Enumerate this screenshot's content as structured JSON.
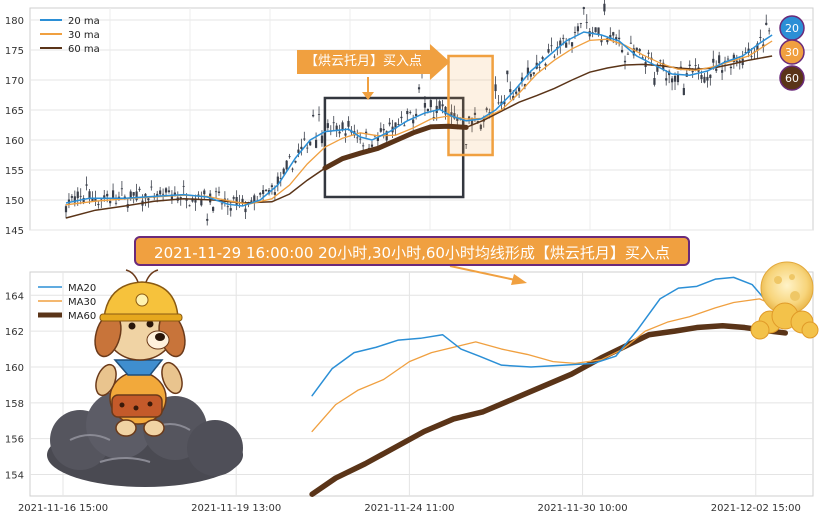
{
  "colors": {
    "ma20": "#2b8fd6",
    "ma30": "#f0a040",
    "ma60": "#5a3418",
    "candle": "#3a3f4a",
    "callout_box": "#33373f",
    "highlight_box": "#f0a040",
    "banner_fill": "#f0a040",
    "banner_border": "#6a2a7a"
  },
  "annotation": {
    "arrow_label": "【烘云托月】买入点",
    "banner": "2021-11-29 16:00:00 20小时,30小时,60小时均线形成【烘云托月】买入点"
  },
  "badges": [
    "20",
    "30",
    "60"
  ],
  "illustrations": [
    "cartoon-dog-on-cloud",
    "moon-with-clouds"
  ],
  "chart_data": [
    {
      "type": "line",
      "description_series": "hourly candlesticks with moving averages",
      "ylim": [
        145,
        182
      ],
      "yticks": [
        145,
        150,
        155,
        160,
        165,
        170,
        175,
        180
      ],
      "grid": true,
      "legend_placement": "top-left",
      "series": [
        {
          "name": "20 ma",
          "color_key": "ma20"
        },
        {
          "name": "30 ma",
          "color_key": "ma30"
        },
        {
          "name": "60 ma",
          "color_key": "ma60"
        }
      ],
      "ma_points": {
        "ma20": [
          [
            0,
            149.5
          ],
          [
            8,
            150.3
          ],
          [
            20,
            150.3
          ],
          [
            30,
            150.6
          ],
          [
            40,
            150.9
          ],
          [
            48,
            150.5
          ],
          [
            55,
            149.3
          ],
          [
            60,
            149.0
          ],
          [
            66,
            150.0
          ],
          [
            72,
            152.5
          ],
          [
            78,
            157.0
          ],
          [
            83,
            160.0
          ],
          [
            88,
            161.4
          ],
          [
            96,
            161.8
          ],
          [
            100,
            160.5
          ],
          [
            104,
            160.0
          ],
          [
            110,
            161.4
          ],
          [
            116,
            163.2
          ],
          [
            122,
            164.5
          ],
          [
            127,
            165.1
          ],
          [
            131,
            164.0
          ],
          [
            136,
            163.2
          ],
          [
            141,
            163.5
          ],
          [
            146,
            165.0
          ],
          [
            152,
            168.0
          ],
          [
            158,
            171.5
          ],
          [
            164,
            174.0
          ],
          [
            170,
            176.5
          ],
          [
            176,
            178.0
          ],
          [
            182,
            177.5
          ],
          [
            188,
            176.5
          ],
          [
            194,
            174.0
          ],
          [
            200,
            172.5
          ],
          [
            206,
            171.0
          ],
          [
            212,
            170.8
          ],
          [
            218,
            171.5
          ],
          [
            224,
            173.0
          ],
          [
            230,
            174.0
          ],
          [
            236,
            176.2
          ],
          [
            240,
            177.5
          ]
        ],
        "ma30": [
          [
            0,
            149.2
          ],
          [
            10,
            149.8
          ],
          [
            20,
            150.2
          ],
          [
            30,
            150.5
          ],
          [
            40,
            150.8
          ],
          [
            48,
            150.6
          ],
          [
            56,
            149.8
          ],
          [
            62,
            149.3
          ],
          [
            70,
            150.2
          ],
          [
            76,
            152.5
          ],
          [
            82,
            156.0
          ],
          [
            88,
            158.8
          ],
          [
            94,
            160.3
          ],
          [
            100,
            161.2
          ],
          [
            106,
            160.7
          ],
          [
            112,
            160.8
          ],
          [
            118,
            162.0
          ],
          [
            124,
            163.5
          ],
          [
            130,
            164.0
          ],
          [
            136,
            163.5
          ],
          [
            142,
            163.6
          ],
          [
            148,
            165.0
          ],
          [
            154,
            167.8
          ],
          [
            160,
            171.0
          ],
          [
            166,
            173.3
          ],
          [
            172,
            175.2
          ],
          [
            178,
            176.6
          ],
          [
            184,
            176.8
          ],
          [
            190,
            175.8
          ],
          [
            196,
            174.2
          ],
          [
            202,
            172.8
          ],
          [
            208,
            171.8
          ],
          [
            214,
            171.6
          ],
          [
            220,
            172.2
          ],
          [
            226,
            173.1
          ],
          [
            232,
            174.0
          ],
          [
            240,
            176.5
          ]
        ],
        "ma60": [
          [
            0,
            147.0
          ],
          [
            10,
            148.3
          ],
          [
            20,
            149.0
          ],
          [
            30,
            149.8
          ],
          [
            40,
            150.2
          ],
          [
            50,
            150.0
          ],
          [
            60,
            149.5
          ],
          [
            70,
            149.7
          ],
          [
            76,
            151.0
          ],
          [
            82,
            153.3
          ],
          [
            88,
            155.3
          ],
          [
            94,
            156.9
          ],
          [
            100,
            157.8
          ],
          [
            106,
            158.6
          ],
          [
            112,
            159.9
          ],
          [
            118,
            161.2
          ],
          [
            124,
            162.2
          ],
          [
            130,
            162.3
          ],
          [
            136,
            162.1
          ],
          [
            142,
            163.3
          ],
          [
            148,
            164.8
          ],
          [
            154,
            166.3
          ],
          [
            160,
            167.4
          ],
          [
            166,
            168.6
          ],
          [
            172,
            170.0
          ],
          [
            178,
            171.3
          ],
          [
            184,
            172.0
          ],
          [
            190,
            172.5
          ],
          [
            196,
            172.6
          ],
          [
            202,
            172.4
          ],
          [
            208,
            172.0
          ],
          [
            214,
            171.8
          ],
          [
            220,
            172.0
          ],
          [
            226,
            172.6
          ],
          [
            232,
            173.3
          ],
          [
            240,
            174.0
          ]
        ]
      },
      "callout_box": {
        "x_range": [
          88,
          135
        ],
        "y_range": [
          150.5,
          167.0
        ]
      },
      "highlight_box": {
        "x_range": [
          130,
          145
        ],
        "y_range": [
          157.5,
          174.0
        ]
      }
    },
    {
      "type": "line",
      "xlabel": "",
      "ylabel": "",
      "grid": true,
      "legend_placement": "top-left",
      "ylim": [
        152.8,
        165.3
      ],
      "yticks": [
        154,
        156,
        158,
        160,
        162,
        164
      ],
      "xlim": [
        0,
        100
      ],
      "xtick_labels": [
        "2021-11-16 15:00",
        "2021-11-19 13:00",
        "2021-11-24 11:00",
        "2021-11-30 10:00",
        "2021-12-02 15:00"
      ],
      "xtick_positions": [
        0,
        23.5,
        47,
        70.5,
        94
      ],
      "series": [
        {
          "name": "MA20",
          "color_key": "ma20",
          "points": [
            [
              33.8,
              158.4
            ],
            [
              36.5,
              159.9
            ],
            [
              39.5,
              160.8
            ],
            [
              42.5,
              161.1
            ],
            [
              45.5,
              161.5
            ],
            [
              48.5,
              161.6
            ],
            [
              51.5,
              161.8
            ],
            [
              54,
              161.0
            ],
            [
              56.5,
              160.6
            ],
            [
              59.5,
              160.1
            ],
            [
              63.5,
              160.0
            ],
            [
              68,
              160.1
            ],
            [
              72,
              160.2
            ],
            [
              75,
              160.6
            ],
            [
              78,
              162.1
            ],
            [
              81,
              163.8
            ],
            [
              83.5,
              164.4
            ],
            [
              86,
              164.5
            ],
            [
              88.5,
              164.9
            ],
            [
              91,
              165.0
            ],
            [
              93.5,
              164.6
            ],
            [
              96,
              163.4
            ],
            [
              98,
              163.0
            ]
          ]
        },
        {
          "name": "MA30",
          "color_key": "ma30",
          "points": [
            [
              33.8,
              156.4
            ],
            [
              37,
              157.9
            ],
            [
              40,
              158.7
            ],
            [
              43.5,
              159.3
            ],
            [
              47,
              160.3
            ],
            [
              50,
              160.8
            ],
            [
              53,
              161.1
            ],
            [
              56,
              161.4
            ],
            [
              59.5,
              161.0
            ],
            [
              63,
              160.7
            ],
            [
              66.5,
              160.3
            ],
            [
              69.5,
              160.2
            ],
            [
              73,
              160.4
            ],
            [
              76,
              161.0
            ],
            [
              79,
              162.0
            ],
            [
              82,
              162.5
            ],
            [
              85,
              162.8
            ],
            [
              88.5,
              163.3
            ],
            [
              91,
              163.6
            ],
            [
              94.5,
              163.8
            ],
            [
              98,
              163.2
            ]
          ]
        },
        {
          "name": "MA60",
          "color_key": "ma60",
          "points": [
            [
              33.8,
              152.9
            ],
            [
              37,
              153.8
            ],
            [
              41,
              154.6
            ],
            [
              45,
              155.5
            ],
            [
              49,
              156.4
            ],
            [
              53,
              157.1
            ],
            [
              57,
              157.5
            ],
            [
              61,
              158.2
            ],
            [
              65,
              158.9
            ],
            [
              69,
              159.6
            ],
            [
              73,
              160.5
            ],
            [
              77,
              161.3
            ],
            [
              79.5,
              161.8
            ],
            [
              83,
              162.0
            ],
            [
              86,
              162.2
            ],
            [
              89.5,
              162.3
            ],
            [
              92.5,
              162.2
            ],
            [
              96,
              162.0
            ],
            [
              98,
              161.9
            ]
          ]
        }
      ]
    }
  ]
}
